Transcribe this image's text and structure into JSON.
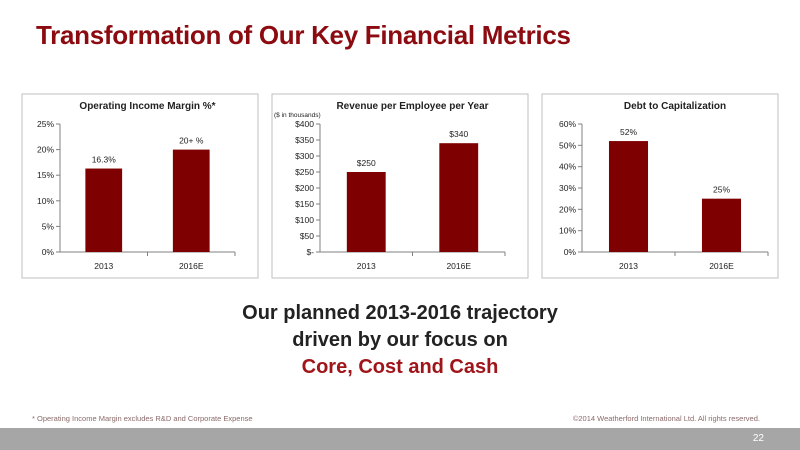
{
  "slide": {
    "title": "Transformation of Our Key Financial Metrics",
    "headline": {
      "line1": "Our planned 2013-2016 trajectory",
      "line2": "driven by our focus on",
      "line3": "Core, Cost and Cash"
    },
    "footnote": "* Operating Income Margin excludes R&D and Corporate Expense",
    "copyright": "©2014 Weatherford International Ltd.  All rights reserved.",
    "page_number": "22"
  },
  "colors": {
    "title": "#8b0b10",
    "bar": "#7f0000",
    "accent_text": "#a0151a",
    "footer_bar": "#a6a6a6"
  },
  "chart_data": [
    {
      "type": "bar",
      "title": "Operating Income Margin %*",
      "subtitle": "",
      "categories": [
        "2013",
        "2016E"
      ],
      "values": [
        16.3,
        20
      ],
      "data_labels": [
        "16.3%",
        "20+ %"
      ],
      "ylim": [
        0,
        25
      ],
      "yticks": [
        0,
        5,
        10,
        15,
        20,
        25
      ],
      "ytick_labels": [
        "0%",
        "5%",
        "10%",
        "15%",
        "20%",
        "25%"
      ],
      "grid": false
    },
    {
      "type": "bar",
      "title": "Revenue per Employee per Year",
      "subtitle": "($ in thousands)",
      "categories": [
        "2013",
        "2016E"
      ],
      "values": [
        250,
        340
      ],
      "data_labels": [
        "$250",
        "$340"
      ],
      "ylim": [
        0,
        400
      ],
      "yticks": [
        0,
        50,
        100,
        150,
        200,
        250,
        300,
        350,
        400
      ],
      "ytick_labels": [
        "$-",
        "$50",
        "$100",
        "$150",
        "$200",
        "$250",
        "$300",
        "$350",
        "$400"
      ],
      "grid": false
    },
    {
      "type": "bar",
      "title": "Debt to Capitalization",
      "subtitle": "",
      "categories": [
        "2013",
        "2016E"
      ],
      "values": [
        52,
        25
      ],
      "data_labels": [
        "52%",
        "25%"
      ],
      "ylim": [
        0,
        60
      ],
      "yticks": [
        0,
        10,
        20,
        30,
        40,
        50,
        60
      ],
      "ytick_labels": [
        "0%",
        "10%",
        "20%",
        "30%",
        "40%",
        "50%",
        "60%"
      ],
      "grid": false
    }
  ]
}
